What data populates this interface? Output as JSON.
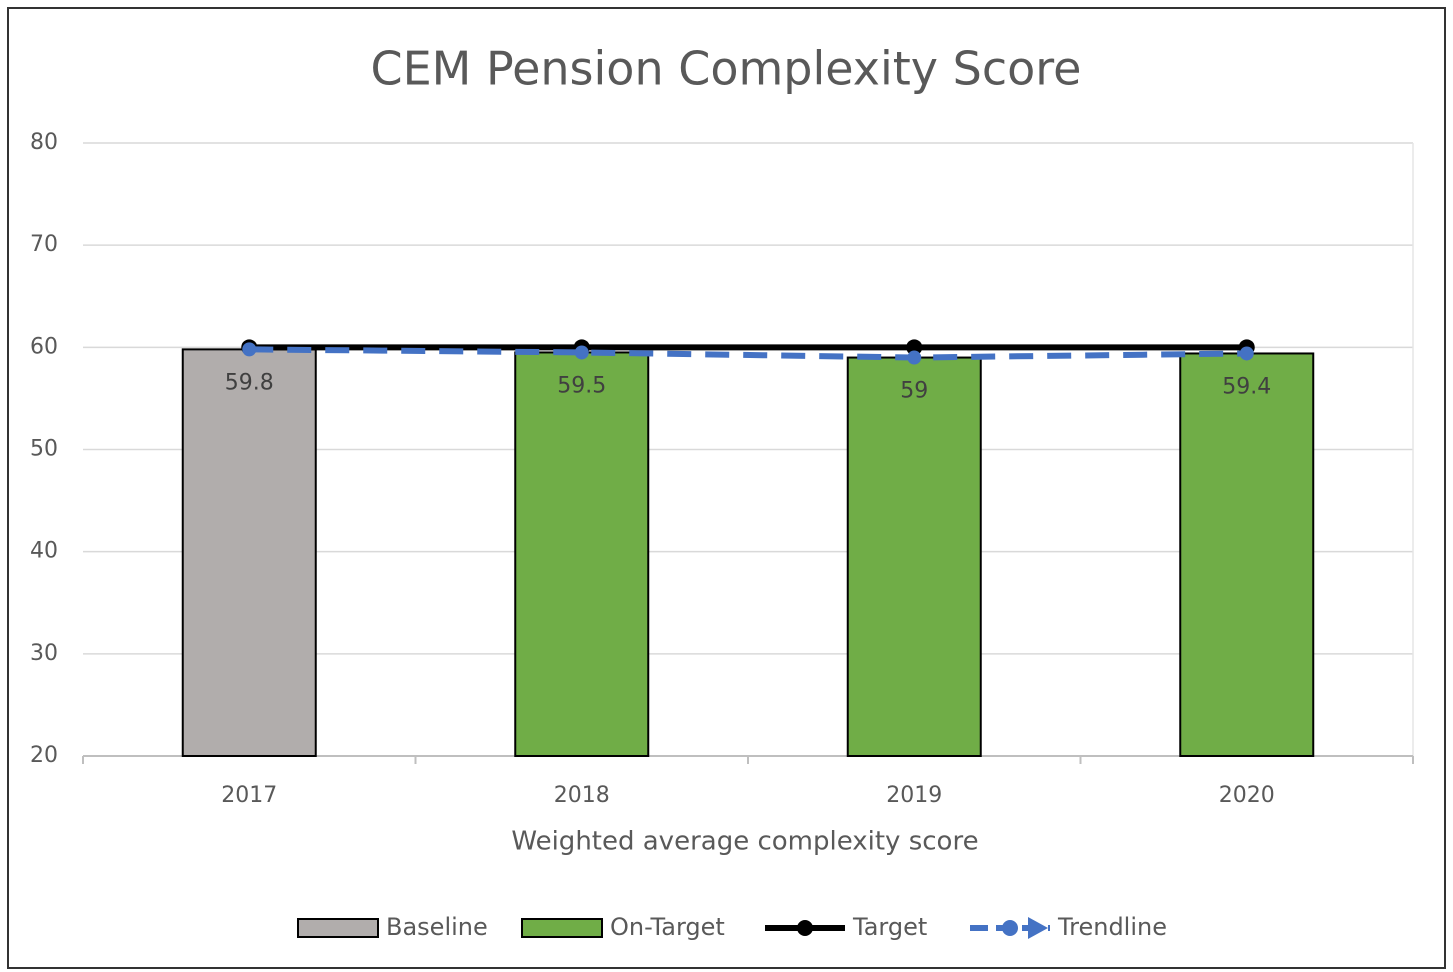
{
  "chart_data": {
    "type": "bar",
    "title": "CEM Pension Complexity Score",
    "x_label": "Weighted average complexity score",
    "categories": [
      "2017",
      "2018",
      "2019",
      "2020"
    ],
    "series": [
      {
        "name": "Baseline",
        "color": "#b1adac",
        "values": [
          59.8,
          null,
          null,
          null
        ]
      },
      {
        "name": "On-Target",
        "color": "#70ad47",
        "values": [
          null,
          59.5,
          59,
          59.4
        ]
      },
      {
        "name": "Target",
        "type": "line",
        "color": "#000000",
        "values": [
          60,
          60,
          60,
          60
        ]
      },
      {
        "name": "Trendline",
        "type": "line",
        "dashed": true,
        "color": "#4472c4",
        "values": [
          59.8,
          59.5,
          59,
          59.4
        ]
      }
    ],
    "ylim": [
      20,
      80
    ],
    "yticks": [
      20,
      30,
      40,
      50,
      60,
      70,
      80
    ],
    "grid": true,
    "legend": "bottom"
  }
}
